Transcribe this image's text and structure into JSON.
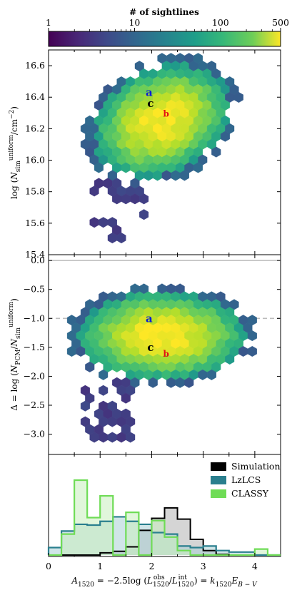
{
  "chart_data": [
    {
      "type": "heatmap",
      "panel": "colorbar",
      "title": "# of sightlines",
      "scale": "log",
      "range": [
        1,
        500
      ],
      "tick_values": [
        1,
        10,
        100,
        500
      ],
      "tick_labels": [
        "1",
        "10",
        "100",
        "500"
      ],
      "colormap": "viridis"
    },
    {
      "type": "heatmap",
      "panel": "top",
      "ylabel": "log(N_sim^uniform / cm^-2)",
      "ylim": [
        15.4,
        16.7
      ],
      "xlim": [
        0,
        4.5
      ],
      "y_tick_values": [
        15.4,
        15.6,
        15.8,
        16.0,
        16.2,
        16.4,
        16.6
      ],
      "y_tick_labels": [
        "15.4",
        "15.6",
        "15.8",
        "16.0",
        "16.2",
        "16.4",
        "16.6"
      ],
      "distribution": {
        "x_range": [
          0.6,
          3.7
        ],
        "y_range": [
          15.5,
          16.6
        ],
        "peak_x": 2.2,
        "peak_y": 16.25,
        "peak_count": 500
      },
      "markers": [
        {
          "label": "a",
          "x": 1.95,
          "y": 16.43,
          "color": "#0a1bd6"
        },
        {
          "label": "c",
          "x": 1.98,
          "y": 16.36,
          "color": "#000000"
        },
        {
          "label": "b",
          "x": 2.28,
          "y": 16.3,
          "color": "#e01414"
        }
      ]
    },
    {
      "type": "heatmap",
      "panel": "middle",
      "ylabel": "Δ = log(N_PCM / N_sim^uniform)",
      "ylim": [
        -3.35,
        0.1
      ],
      "xlim": [
        0,
        4.5
      ],
      "y_tick_values": [
        0.0,
        -0.5,
        -1.0,
        -1.5,
        -2.0,
        -2.5,
        -3.0
      ],
      "y_tick_labels": [
        "0.0",
        "−0.5",
        "−1.0",
        "−1.5",
        "−2.0",
        "−2.5",
        "−3.0"
      ],
      "reference_lines": [
        {
          "y": 0.0,
          "style": "solid",
          "color": "#bbbbbb"
        },
        {
          "y": -1.0,
          "style": "dashed",
          "color": "#bbbbbb"
        }
      ],
      "distribution": {
        "x_range": [
          0.5,
          3.7
        ],
        "y_range": [
          -3.1,
          -0.55
        ],
        "peak_x": 2.2,
        "peak_y": -1.3,
        "peak_count": 500
      },
      "markers": [
        {
          "label": "a",
          "x": 1.95,
          "y": -1.0,
          "color": "#0a1bd6"
        },
        {
          "label": "c",
          "x": 1.98,
          "y": -1.5,
          "color": "#000000"
        },
        {
          "label": "b",
          "x": 2.28,
          "y": -1.6,
          "color": "#e01414"
        }
      ]
    },
    {
      "type": "bar",
      "panel": "bottom",
      "xlabel": "A_1520 = −2.5 log(L_1520^obs / L_1520^int) = k_1520 E_B−V",
      "xlim": [
        0,
        4.5
      ],
      "x_tick_values": [
        0,
        1,
        2,
        3,
        4
      ],
      "x_tick_labels": [
        "0",
        "1",
        "2",
        "3",
        "4"
      ],
      "bin_edges": [
        0.0,
        0.25,
        0.5,
        0.75,
        1.0,
        1.25,
        1.5,
        1.75,
        2.0,
        2.25,
        2.5,
        2.75,
        3.0,
        3.25,
        3.5,
        3.75,
        4.0,
        4.25,
        4.5
      ],
      "legend": {
        "position": "top-right",
        "entries": [
          "Simulation",
          "LzLCS",
          "CLASSY"
        ]
      },
      "series": [
        {
          "name": "Simulation",
          "color": "#000000",
          "fill": "#b3b3b3",
          "values": [
            0,
            0,
            0,
            0,
            0.03,
            0.05,
            0.11,
            0.33,
            0.49,
            0.63,
            0.48,
            0.21,
            0.06,
            0.01,
            0,
            0,
            0,
            0
          ]
        },
        {
          "name": "LzLCS",
          "color": "#2a7f8e",
          "fill": "#a9cfd6",
          "values": [
            0.1,
            0.32,
            0.41,
            0.4,
            0.45,
            0.51,
            0.45,
            0.41,
            0.3,
            0.28,
            0.12,
            0.1,
            0.12,
            0.06,
            0.04,
            0.04,
            0,
            0
          ]
        },
        {
          "name": "CLASSY",
          "color": "#6fdc56",
          "fill": "#c8efbe",
          "values": [
            0,
            0.28,
            1.0,
            0.5,
            0.79,
            0,
            0.57,
            0,
            0.46,
            0.24,
            0.06,
            0,
            0,
            0,
            0,
            0,
            0.08,
            0
          ]
        }
      ]
    }
  ]
}
